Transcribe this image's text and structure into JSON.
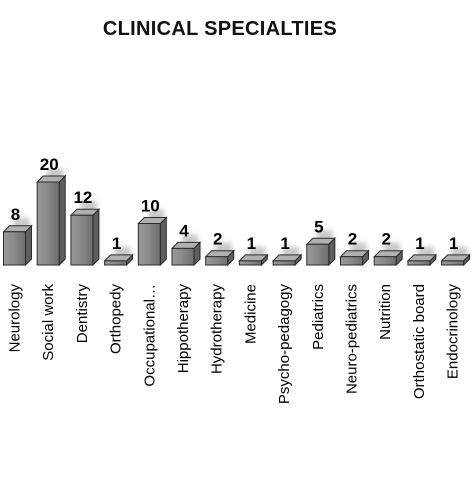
{
  "chart_data": {
    "type": "bar",
    "title": "CLINICAL SPECIALTIES",
    "categories": [
      "Neurology",
      "Social work",
      "Dentistry",
      "Orthopedy",
      "Occupational…",
      "Hippotherapy",
      "Hydrotherapy",
      "Medicine",
      "Psycho-pedagogy",
      "Pediatrics",
      "Neuro-pediatrics",
      "Nutrition",
      "Orthostatic board",
      "Endocrinology"
    ],
    "values": [
      8,
      20,
      12,
      1,
      10,
      4,
      2,
      1,
      1,
      5,
      2,
      2,
      1,
      1
    ],
    "ylim": [
      0,
      20
    ],
    "grid": false,
    "bar_color": "#8c8c8c",
    "bar_edge_color": "#2b2b2b"
  }
}
